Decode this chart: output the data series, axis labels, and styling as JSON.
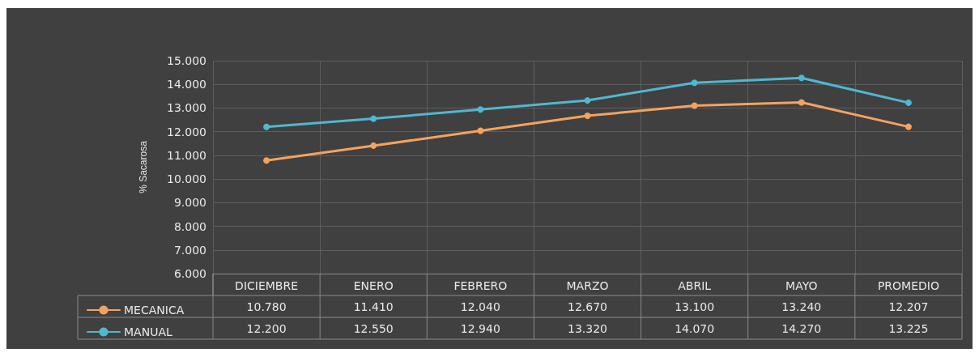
{
  "chart_data": {
    "type": "line",
    "ylabel": "% Sacarosa",
    "categories": [
      "DICIEMBRE",
      "ENERO",
      "FEBRERO",
      "MARZO",
      "ABRIL",
      "MAYO",
      "PROMEDIO"
    ],
    "series": [
      {
        "name": "MECANICA",
        "color": "#f4a35f",
        "values": [
          10.78,
          11.41,
          12.04,
          12.67,
          13.1,
          13.24,
          12.207
        ],
        "value_labels": [
          "10.780",
          "11.410",
          "12.040",
          "12.670",
          "13.100",
          "13.240",
          "12.207"
        ]
      },
      {
        "name": "MANUAL",
        "color": "#4fb8d0",
        "values": [
          12.2,
          12.55,
          12.94,
          13.32,
          14.07,
          14.27,
          13.225
        ],
        "value_labels": [
          "12.200",
          "12.550",
          "12.940",
          "13.320",
          "14.070",
          "14.270",
          "13.225"
        ]
      }
    ],
    "ylim": [
      6,
      15
    ],
    "yticks": [
      {
        "value": 6,
        "label": "6.000"
      },
      {
        "value": 7,
        "label": "7.000"
      },
      {
        "value": 8,
        "label": "8.000"
      },
      {
        "value": 9,
        "label": "9.000"
      },
      {
        "value": 10,
        "label": "10.000"
      },
      {
        "value": 11,
        "label": "11.000"
      },
      {
        "value": 12,
        "label": "12.000"
      },
      {
        "value": 13,
        "label": "13.000"
      },
      {
        "value": 14,
        "label": "14.000"
      },
      {
        "value": 15,
        "label": "15.000"
      }
    ],
    "grid": true,
    "legend": "bottom left",
    "marker": "circle",
    "line_style": "solid"
  }
}
